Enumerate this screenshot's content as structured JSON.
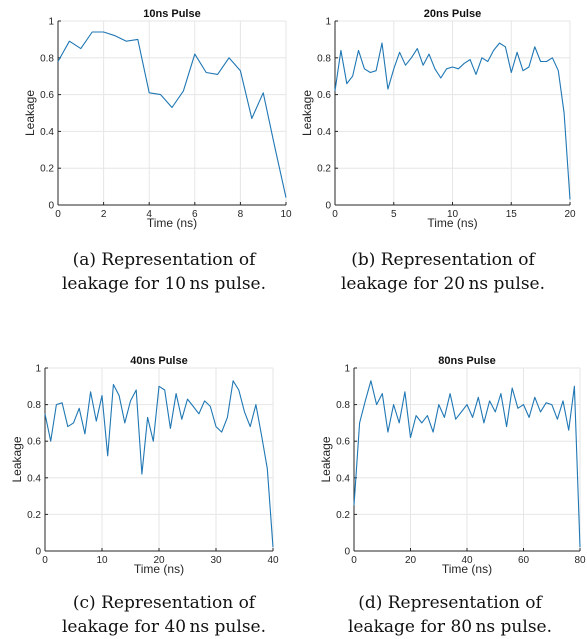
{
  "chart_data": [
    {
      "type": "line",
      "title": "10ns Pulse",
      "xlabel": "Time (ns)",
      "ylabel": "Leakage",
      "xlim": [
        0,
        10
      ],
      "ylim": [
        0,
        1
      ],
      "xticks": [
        "0",
        "2",
        "4",
        "6",
        "8",
        "10"
      ],
      "yticks": [
        "0",
        "0.2",
        "0.4",
        "0.6",
        "0.8",
        "1"
      ],
      "grid": true,
      "line_color": "#1f77b4",
      "x": [
        0,
        0.5,
        1,
        1.5,
        2,
        2.5,
        3,
        3.5,
        4,
        4.5,
        5,
        5.5,
        6,
        6.5,
        7,
        7.5,
        8,
        8.5,
        9,
        9.5,
        10
      ],
      "y": [
        0.78,
        0.89,
        0.85,
        0.94,
        0.94,
        0.92,
        0.89,
        0.9,
        0.61,
        0.6,
        0.53,
        0.62,
        0.82,
        0.72,
        0.71,
        0.8,
        0.73,
        0.47,
        0.61,
        0.32,
        0.04
      ]
    },
    {
      "type": "line",
      "title": "20ns Pulse",
      "xlabel": "Time (ns)",
      "ylabel": "Leakage",
      "xlim": [
        0,
        20
      ],
      "ylim": [
        0,
        1
      ],
      "xticks": [
        "0",
        "5",
        "10",
        "15",
        "20"
      ],
      "yticks": [
        "0",
        "0.2",
        "0.4",
        "0.6",
        "0.8",
        "1"
      ],
      "grid": true,
      "line_color": "#1f77b4",
      "x": [
        0,
        0.5,
        1,
        1.5,
        2,
        2.5,
        3,
        3.5,
        4,
        4.5,
        5,
        5.5,
        6,
        6.5,
        7,
        7.5,
        8,
        8.5,
        9,
        9.5,
        10,
        10.5,
        11,
        11.5,
        12,
        12.5,
        13,
        13.5,
        14,
        14.5,
        15,
        15.5,
        16,
        16.5,
        17,
        17.5,
        18,
        18.5,
        19,
        19.5,
        20
      ],
      "y": [
        0.62,
        0.84,
        0.66,
        0.7,
        0.84,
        0.74,
        0.72,
        0.73,
        0.88,
        0.63,
        0.74,
        0.83,
        0.76,
        0.8,
        0.85,
        0.76,
        0.82,
        0.74,
        0.69,
        0.74,
        0.75,
        0.74,
        0.77,
        0.79,
        0.71,
        0.8,
        0.78,
        0.84,
        0.88,
        0.86,
        0.72,
        0.83,
        0.73,
        0.75,
        0.86,
        0.78,
        0.78,
        0.8,
        0.73,
        0.5,
        0.03
      ]
    },
    {
      "type": "line",
      "title": "40ns Pulse",
      "xlabel": "Time (ns)",
      "ylabel": "Leakage",
      "xlim": [
        0,
        40
      ],
      "ylim": [
        0,
        1
      ],
      "xticks": [
        "0",
        "10",
        "20",
        "30",
        "40"
      ],
      "yticks": [
        "0",
        "0.2",
        "0.4",
        "0.6",
        "0.8",
        "1"
      ],
      "grid": true,
      "line_color": "#1f77b4",
      "x": [
        0,
        1,
        2,
        3,
        4,
        5,
        6,
        7,
        8,
        9,
        10,
        11,
        12,
        13,
        14,
        15,
        16,
        17,
        18,
        19,
        20,
        21,
        22,
        23,
        24,
        25,
        26,
        27,
        28,
        29,
        30,
        31,
        32,
        33,
        34,
        35,
        36,
        37,
        38,
        39,
        40
      ],
      "y": [
        0.75,
        0.6,
        0.8,
        0.81,
        0.68,
        0.7,
        0.78,
        0.64,
        0.87,
        0.71,
        0.85,
        0.52,
        0.91,
        0.85,
        0.7,
        0.82,
        0.88,
        0.42,
        0.73,
        0.6,
        0.9,
        0.88,
        0.67,
        0.86,
        0.72,
        0.83,
        0.79,
        0.75,
        0.82,
        0.79,
        0.68,
        0.65,
        0.73,
        0.93,
        0.88,
        0.76,
        0.68,
        0.8,
        0.63,
        0.45,
        0.02
      ]
    },
    {
      "type": "line",
      "title": "80ns Pulse",
      "xlabel": "Time (ns)",
      "ylabel": "Leakage",
      "xlim": [
        0,
        80
      ],
      "ylim": [
        0,
        1
      ],
      "xticks": [
        "0",
        "20",
        "40",
        "60",
        "80"
      ],
      "yticks": [
        "0",
        "0.2",
        "0.4",
        "0.6",
        "0.8",
        "1"
      ],
      "grid": true,
      "line_color": "#1f77b4",
      "x": [
        0,
        2,
        4,
        6,
        8,
        10,
        12,
        14,
        16,
        18,
        20,
        22,
        24,
        26,
        28,
        30,
        32,
        34,
        36,
        38,
        40,
        42,
        44,
        46,
        48,
        50,
        52,
        54,
        56,
        58,
        60,
        62,
        64,
        66,
        68,
        70,
        72,
        74,
        76,
        78,
        80
      ],
      "y": [
        0.25,
        0.7,
        0.82,
        0.93,
        0.8,
        0.86,
        0.65,
        0.8,
        0.7,
        0.87,
        0.62,
        0.74,
        0.7,
        0.74,
        0.65,
        0.8,
        0.73,
        0.86,
        0.72,
        0.76,
        0.8,
        0.73,
        0.84,
        0.7,
        0.82,
        0.76,
        0.86,
        0.68,
        0.89,
        0.78,
        0.8,
        0.73,
        0.84,
        0.76,
        0.81,
        0.8,
        0.72,
        0.82,
        0.66,
        0.9,
        0.02
      ]
    }
  ],
  "captions": [
    {
      "label": "(a)",
      "line1": "(a) Representation of",
      "line2": "leakage for 10 ns pulse."
    },
    {
      "label": "(b)",
      "line1": "(b) Representation of",
      "line2": "leakage for 20 ns pulse."
    },
    {
      "label": "(c)",
      "line1": "(c) Representation of",
      "line2": "leakage for 40 ns pulse."
    },
    {
      "label": "(d)",
      "line1": "(d) Representation of",
      "line2": "leakage for 80 ns pulse."
    }
  ]
}
